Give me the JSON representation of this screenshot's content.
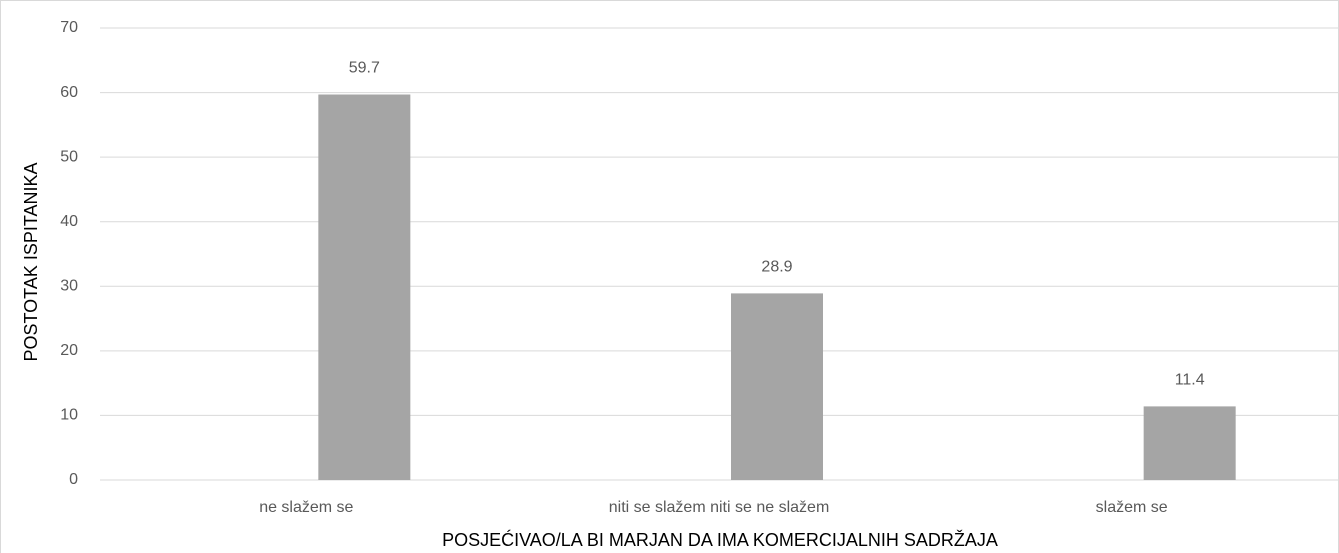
{
  "chart_data": {
    "type": "bar",
    "xlabel": "POSJEĆIVAO/LA BI MARJAN DA IMA KOMERCIJALNIH SADRŽAJA",
    "ylabel": "POSTOTAK ISPITANIKA",
    "categories": [
      "ne slažem se",
      "niti se slažem niti se ne slažem",
      "slažem se"
    ],
    "values": [
      59.7,
      28.9,
      11.4
    ],
    "color": "#a5a5a5",
    "ylim": [
      0,
      70
    ],
    "yticks": [
      0,
      10,
      20,
      30,
      40,
      50,
      60,
      70
    ],
    "grid": true
  }
}
